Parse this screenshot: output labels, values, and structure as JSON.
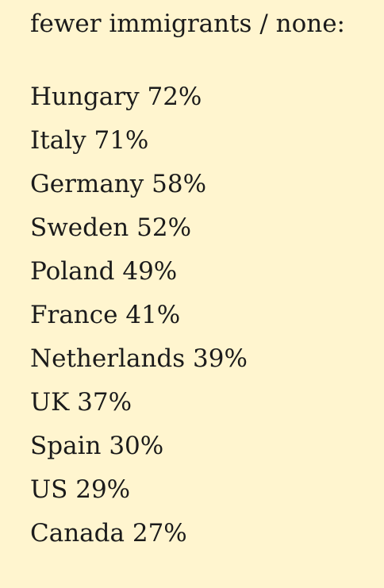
{
  "heading": "fewer immigrants / none:",
  "rows": [
    {
      "country": "Hungary",
      "value": "72%"
    },
    {
      "country": "Italy",
      "value": "71%"
    },
    {
      "country": "Germany",
      "value": "58%"
    },
    {
      "country": "Sweden",
      "value": "52%"
    },
    {
      "country": "Poland",
      "value": "49%"
    },
    {
      "country": "France",
      "value": "41%"
    },
    {
      "country": "Netherlands",
      "value": "39%"
    },
    {
      "country": "UK",
      "value": "37%"
    },
    {
      "country": "Spain",
      "value": "30%"
    },
    {
      "country": "US",
      "value": "29%"
    },
    {
      "country": "Canada",
      "value": "27%"
    }
  ],
  "colors": {
    "background": "#fff5cf",
    "text": "#1b1b1b"
  }
}
